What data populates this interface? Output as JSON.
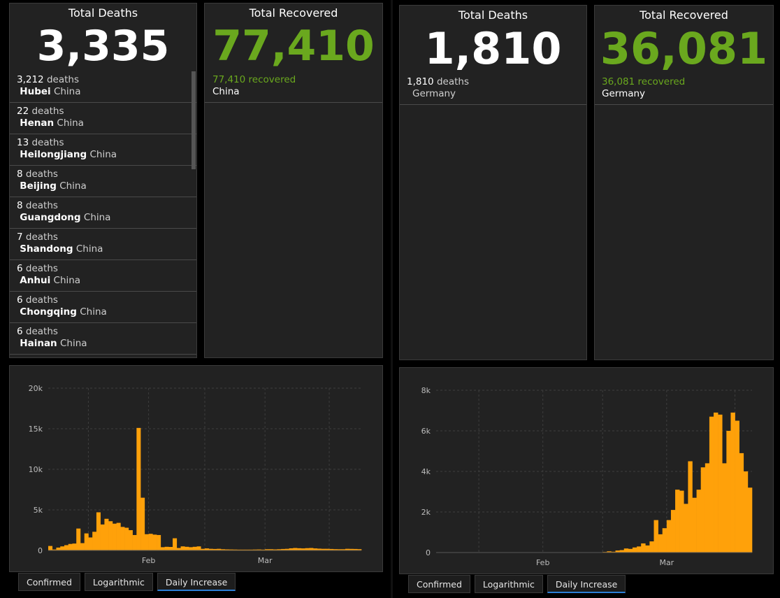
{
  "left": {
    "deaths_panel": {
      "title": "Total Deaths",
      "value": "3,335",
      "items": [
        {
          "count": "3,212",
          "unit": "deaths",
          "region": "Hubei",
          "country": "China"
        },
        {
          "count": "22",
          "unit": "deaths",
          "region": "Henan",
          "country": "China"
        },
        {
          "count": "13",
          "unit": "deaths",
          "region": "Heilongjiang",
          "country": "China"
        },
        {
          "count": "8",
          "unit": "deaths",
          "region": "Beijing",
          "country": "China"
        },
        {
          "count": "8",
          "unit": "deaths",
          "region": "Guangdong",
          "country": "China"
        },
        {
          "count": "7",
          "unit": "deaths",
          "region": "Shandong",
          "country": "China"
        },
        {
          "count": "6",
          "unit": "deaths",
          "region": "Anhui",
          "country": "China"
        },
        {
          "count": "6",
          "unit": "deaths",
          "region": "Chongqing",
          "country": "China"
        },
        {
          "count": "6",
          "unit": "deaths",
          "region": "Hainan",
          "country": "China"
        }
      ]
    },
    "recovered_panel": {
      "title": "Total Recovered",
      "value": "77,410",
      "item": {
        "count": "77,410",
        "unit": "recovered",
        "country": "China"
      }
    },
    "tabs": [
      "Confirmed",
      "Logarithmic",
      "Daily Increase"
    ],
    "active_tab": 2
  },
  "right": {
    "deaths_panel": {
      "title": "Total Deaths",
      "value": "1,810",
      "item": {
        "count": "1,810",
        "unit": "deaths",
        "country": "Germany"
      }
    },
    "recovered_panel": {
      "title": "Total Recovered",
      "value": "36,081",
      "item": {
        "count": "36,081",
        "unit": "recovered",
        "country": "Germany"
      }
    },
    "tabs": [
      "Confirmed",
      "Logarithmic",
      "Daily Increase"
    ],
    "active_tab": 2
  },
  "colors": {
    "bar": "#ffa10a",
    "recovered": "#6aa81e",
    "active_tab_underline": "#2c7fd6"
  },
  "chart_data": [
    {
      "type": "bar",
      "ylim": [
        0,
        20000
      ],
      "yticks": [
        "0",
        "5k",
        "10k",
        "15k",
        "20k"
      ],
      "yticks_values": [
        0,
        5000,
        10000,
        15000,
        20000
      ],
      "x_labels": [
        {
          "label": "Feb",
          "index": 25
        },
        {
          "label": "Mar",
          "index": 54
        }
      ],
      "x_grid_indices": [
        10,
        25,
        39,
        54,
        70
      ],
      "values": [
        550,
        120,
        350,
        500,
        650,
        800,
        850,
        2700,
        900,
        2100,
        1600,
        2300,
        4700,
        3200,
        3900,
        3600,
        3300,
        3400,
        2900,
        2800,
        2500,
        1900,
        15100,
        6500,
        2000,
        2050,
        1950,
        1900,
        400,
        450,
        430,
        1500,
        300,
        500,
        450,
        400,
        450,
        500,
        200,
        250,
        200,
        180,
        200,
        150,
        130,
        120,
        110,
        100,
        100,
        100,
        100,
        110,
        120,
        100,
        150,
        150,
        130,
        150,
        180,
        200,
        260,
        300,
        270,
        250,
        280,
        300,
        250,
        220,
        200,
        200,
        180,
        160,
        150,
        150,
        200,
        190,
        180,
        160
      ]
    },
    {
      "type": "bar",
      "ylim": [
        0,
        8000
      ],
      "yticks": [
        "0",
        "2k",
        "4k",
        "6k",
        "8k"
      ],
      "yticks_values": [
        0,
        2000,
        4000,
        6000,
        8000
      ],
      "x_labels": [
        {
          "label": "Feb",
          "index": 25
        },
        {
          "label": "Mar",
          "index": 54
        }
      ],
      "x_grid_indices": [
        10,
        25,
        39,
        54,
        70
      ],
      "values": [
        0,
        0,
        0,
        0,
        0,
        0,
        0,
        0,
        0,
        0,
        0,
        0,
        0,
        0,
        0,
        0,
        0,
        0,
        0,
        0,
        0,
        0,
        0,
        0,
        0,
        0,
        0,
        0,
        0,
        0,
        0,
        0,
        0,
        0,
        0,
        0,
        0,
        0,
        0,
        30,
        60,
        40,
        100,
        120,
        200,
        180,
        250,
        300,
        450,
        350,
        550,
        1600,
        900,
        1200,
        1600,
        2100,
        3100,
        3050,
        2400,
        4500,
        2700,
        3100,
        4200,
        4400,
        6700,
        6900,
        6800,
        4400,
        6000,
        6900,
        6500,
        4900,
        4000,
        3200
      ]
    }
  ]
}
